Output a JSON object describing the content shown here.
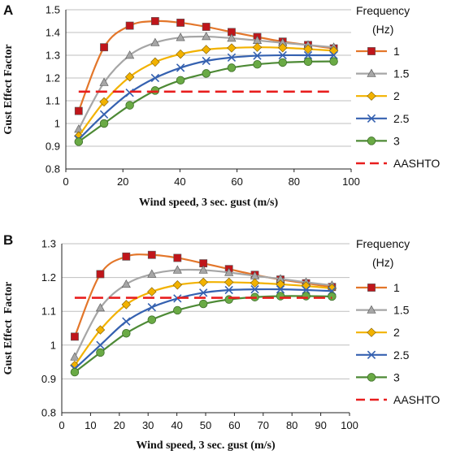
{
  "chart_data": [
    {
      "panel_label": "A",
      "type": "line",
      "xlabel": "Wind speed, 3 sec. gust (m/s)",
      "ylabel": "Gust Effect Factor",
      "xlim": [
        0,
        100
      ],
      "ylim": [
        0.8,
        1.5
      ],
      "xticks": [
        "0",
        "20",
        "40",
        "60",
        "80",
        "100"
      ],
      "yticks": [
        "0.8",
        "0.9",
        "1",
        "1.1",
        "1.2",
        "1.3",
        "1.4",
        "1.5"
      ],
      "grid": "horizontal",
      "legend_title": [
        "Frequency",
        "(Hz)"
      ],
      "legend_position": "right",
      "x": [
        4.5,
        13.4,
        22.4,
        31.3,
        40.2,
        49.2,
        58.1,
        67.1,
        76,
        84.9,
        93.9
      ],
      "series": [
        {
          "name": "1",
          "color": "#e3762a",
          "marker": "square",
          "marker_color": "#c0161b",
          "values": [
            1.055,
            1.335,
            1.43,
            1.45,
            1.443,
            1.425,
            1.402,
            1.38,
            1.36,
            1.345,
            1.33
          ]
        },
        {
          "name": "1.5",
          "color": "#a6a6a6",
          "marker": "triangle",
          "marker_color": "#a6a6a6",
          "values": [
            0.975,
            1.18,
            1.3,
            1.355,
            1.378,
            1.382,
            1.375,
            1.365,
            1.355,
            1.345,
            1.335
          ]
        },
        {
          "name": "2",
          "color": "#f2b200",
          "marker": "diamond",
          "marker_color": "#f2b200",
          "values": [
            0.945,
            1.095,
            1.205,
            1.27,
            1.305,
            1.325,
            1.332,
            1.335,
            1.333,
            1.327,
            1.32
          ]
        },
        {
          "name": "2.5",
          "color": "#3561b0",
          "marker": "x",
          "marker_color": "#3561b0",
          "values": [
            0.93,
            1.04,
            1.135,
            1.2,
            1.245,
            1.275,
            1.29,
            1.298,
            1.3,
            1.3,
            1.3
          ]
        },
        {
          "name": "3",
          "color": "#4d8a35",
          "marker": "circle",
          "marker_color": "#6aaa45",
          "values": [
            0.92,
            1.0,
            1.08,
            1.145,
            1.19,
            1.22,
            1.245,
            1.26,
            1.268,
            1.272,
            1.273
          ]
        },
        {
          "name": "AASHTO",
          "color": "#e81e1e",
          "marker": "none",
          "dashed": true,
          "x": [
            4.5,
            93.9
          ],
          "values": [
            1.14,
            1.14
          ]
        }
      ]
    },
    {
      "panel_label": "B",
      "type": "line",
      "xlabel": "Wind speed, 3 sec. gust (m/s)",
      "ylabel": "Gust Effect  Factor",
      "xlim": [
        0,
        100
      ],
      "ylim": [
        0.8,
        1.3
      ],
      "xticks": [
        "0",
        "10",
        "20",
        "30",
        "40",
        "50",
        "60",
        "70",
        "80",
        "90",
        "100"
      ],
      "yticks": [
        "0.8",
        "0.9",
        "1",
        "1.1",
        "1.2",
        "1.3"
      ],
      "grid": "horizontal",
      "legend_title": [
        "Frequency",
        "(Hz)"
      ],
      "legend_position": "right",
      "x": [
        4.5,
        13.4,
        22.4,
        31.3,
        40.2,
        49.2,
        58.1,
        67.1,
        76,
        84.9,
        93.9
      ],
      "series": [
        {
          "name": "1",
          "color": "#e3762a",
          "marker": "square",
          "marker_color": "#c0161b",
          "values": [
            1.025,
            1.21,
            1.262,
            1.267,
            1.258,
            1.242,
            1.225,
            1.208,
            1.194,
            1.183,
            1.172
          ]
        },
        {
          "name": "1.5",
          "color": "#a6a6a6",
          "marker": "triangle",
          "marker_color": "#a6a6a6",
          "values": [
            0.965,
            1.11,
            1.18,
            1.21,
            1.222,
            1.222,
            1.215,
            1.205,
            1.196,
            1.186,
            1.177
          ]
        },
        {
          "name": "2",
          "color": "#f2b200",
          "marker": "diamond",
          "marker_color": "#f2b200",
          "values": [
            0.94,
            1.045,
            1.12,
            1.158,
            1.178,
            1.186,
            1.186,
            1.184,
            1.18,
            1.175,
            1.168
          ]
        },
        {
          "name": "2.5",
          "color": "#3561b0",
          "marker": "x",
          "marker_color": "#3561b0",
          "values": [
            0.93,
            1.0,
            1.07,
            1.112,
            1.138,
            1.155,
            1.163,
            1.165,
            1.165,
            1.163,
            1.16
          ]
        },
        {
          "name": "3",
          "color": "#4d8a35",
          "marker": "circle",
          "marker_color": "#6aaa45",
          "values": [
            0.92,
            0.978,
            1.035,
            1.075,
            1.103,
            1.122,
            1.135,
            1.142,
            1.145,
            1.145,
            1.144
          ]
        },
        {
          "name": "AASHTO",
          "color": "#e81e1e",
          "marker": "none",
          "dashed": true,
          "x": [
            4.5,
            93.9
          ],
          "values": [
            1.14,
            1.14
          ]
        }
      ]
    }
  ]
}
